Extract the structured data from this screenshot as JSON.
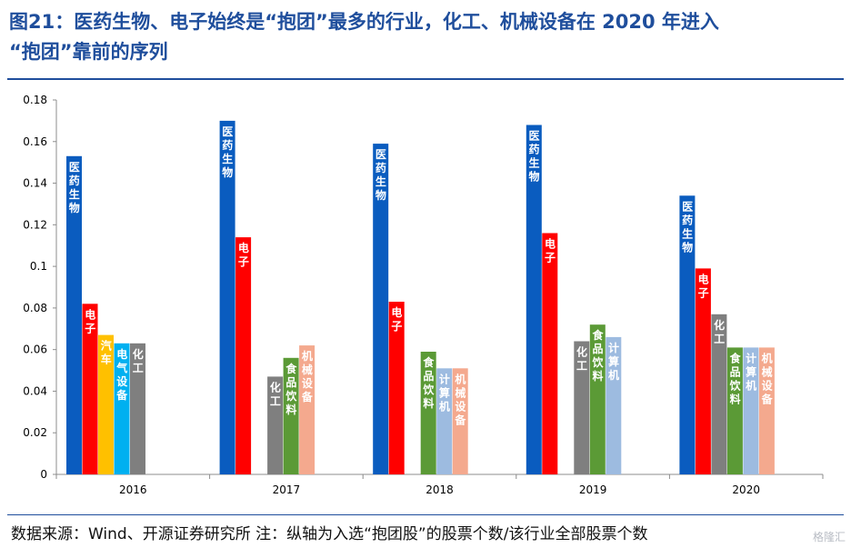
{
  "figure": {
    "title_line1": "图21：医药生物、电子始终是“抱团”最多的行业，化工、机械设备在 2020 年进入",
    "title_line2": "“抱团”靠前的序列",
    "source": "数据来源：Wind、开源证券研究所  注：纵轴为入选“抱团股”的股票个数/该行业全部股票个数",
    "watermark": "格隆汇"
  },
  "chart_data": {
    "type": "bar",
    "categories": [
      "2016",
      "2017",
      "2018",
      "2019",
      "2020"
    ],
    "ylim": [
      0,
      0.18
    ],
    "yticks": [
      "0",
      "0.02",
      "0.04",
      "0.06",
      "0.08",
      "0.1",
      "0.12",
      "0.14",
      "0.16",
      "0.18"
    ],
    "grid": false,
    "legend": "none",
    "groups": [
      {
        "year": "2016",
        "bars": [
          {
            "label": "医药生物",
            "value": 0.153,
            "color": "#0a5cbf"
          },
          {
            "label": "电子",
            "value": 0.082,
            "color": "#ff0000"
          },
          {
            "label": "汽车",
            "value": 0.067,
            "color": "#ffc000"
          },
          {
            "label": "电气设备",
            "value": 0.063,
            "color": "#00b0f0"
          },
          {
            "label": "化工",
            "value": 0.063,
            "color": "#7f7f7f"
          }
        ]
      },
      {
        "year": "2017",
        "bars": [
          {
            "label": "医药生物",
            "value": 0.17,
            "color": "#0a5cbf"
          },
          {
            "label": "电子",
            "value": 0.114,
            "color": "#ff0000"
          },
          {
            "label": "化工",
            "value": 0.047,
            "color": "#7f7f7f"
          },
          {
            "label": "食品饮料",
            "value": 0.056,
            "color": "#5b9a36"
          },
          {
            "label": "机械设备",
            "value": 0.062,
            "color": "#f4a98e"
          }
        ]
      },
      {
        "year": "2018",
        "bars": [
          {
            "label": "医药生物",
            "value": 0.159,
            "color": "#0a5cbf"
          },
          {
            "label": "电子",
            "value": 0.083,
            "color": "#ff0000"
          },
          {
            "label": "食品饮料",
            "value": 0.059,
            "color": "#5b9a36"
          },
          {
            "label": "计算机",
            "value": 0.051,
            "color": "#9dbbe0"
          },
          {
            "label": "机械设备",
            "value": 0.051,
            "color": "#f4a98e"
          }
        ]
      },
      {
        "year": "2019",
        "bars": [
          {
            "label": "医药生物",
            "value": 0.168,
            "color": "#0a5cbf"
          },
          {
            "label": "电子",
            "value": 0.116,
            "color": "#ff0000"
          },
          {
            "label": "化工",
            "value": 0.064,
            "color": "#7f7f7f"
          },
          {
            "label": "食品饮料",
            "value": 0.072,
            "color": "#5b9a36"
          },
          {
            "label": "计算机",
            "value": 0.066,
            "color": "#9dbbe0"
          }
        ]
      },
      {
        "year": "2020",
        "bars": [
          {
            "label": "医药生物",
            "value": 0.134,
            "color": "#0a5cbf"
          },
          {
            "label": "电子",
            "value": 0.099,
            "color": "#ff0000"
          },
          {
            "label": "化工",
            "value": 0.077,
            "color": "#7f7f7f"
          },
          {
            "label": "食品饮料",
            "value": 0.061,
            "color": "#5b9a36"
          },
          {
            "label": "计算机",
            "value": 0.061,
            "color": "#9dbbe0"
          },
          {
            "label": "机械设备",
            "value": 0.061,
            "color": "#f4a98e"
          }
        ]
      }
    ]
  }
}
